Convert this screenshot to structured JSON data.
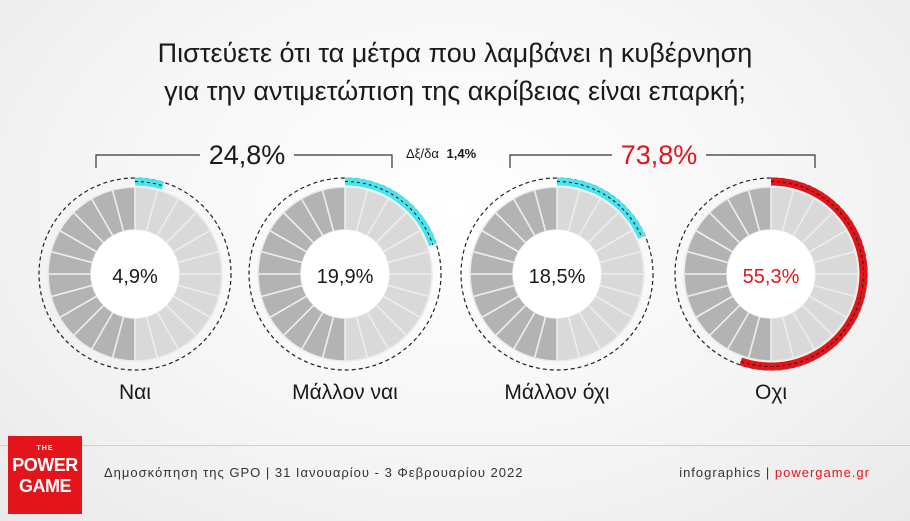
{
  "title": {
    "line1": "Πιστεύετε ότι τα μέτρα που λαμβάνει η κυβέρνηση",
    "line2": "για την αντιμετώπιση της ακρίβειας είναι επαρκή;"
  },
  "groups": {
    "yes_total": "24,8%",
    "no_total": "73,8%",
    "dk_label": "Δξ/δα",
    "dk_value": "1,4%"
  },
  "chart_data": {
    "type": "pie",
    "title": "Πιστεύετε ότι τα μέτρα που λαμβάνει η κυβέρνηση για την αντιμετώπιση της ακρίβειας είναι επαρκή;",
    "categories": [
      "Ναι",
      "Μάλλον ναι",
      "Μάλλον όχι",
      "Οχι"
    ],
    "values": [
      4.9,
      19.9,
      18.5,
      55.3
    ],
    "value_labels": [
      "4,9%",
      "19,9%",
      "18,5%",
      "55,3%"
    ],
    "groups": [
      {
        "label": "24,8%",
        "members": [
          "Ναι",
          "Μάλλον ναι"
        ],
        "value": 24.8
      },
      {
        "label": "73,8%",
        "members": [
          "Μάλλον όχι",
          "Οχι"
        ],
        "value": 73.8
      }
    ],
    "other": {
      "label": "Δξ/δα",
      "value": 1.4,
      "value_label": "1,4%"
    }
  },
  "colors": {
    "accent_cyan": "#4de3ec",
    "accent_red": "#e3151a",
    "segment_dark": "#b3b3b3",
    "segment_light": "#d9d9d9",
    "text_dark": "#1a1a1a"
  },
  "footer": {
    "logo_the": "THE",
    "logo_line1": "POWER",
    "logo_line2": "GAME",
    "source": "Δημοσκόπηση της GPO | 31 Ιανουαρίου - 3 Φεβρουαρίου 2022",
    "credit_prefix": "infographics | ",
    "credit_brand": "powergame.gr"
  }
}
